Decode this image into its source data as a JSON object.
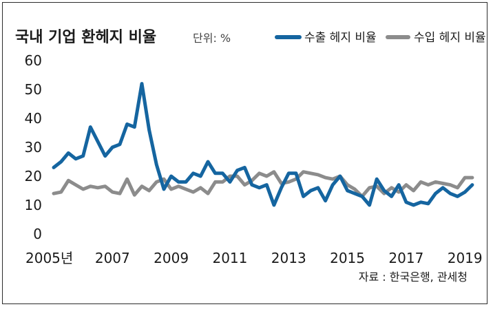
{
  "chart_data": {
    "type": "line",
    "title": "국내 기업 환헤지 비율",
    "unit_label": "단위: %",
    "source": "자료 : 한국은행, 관세청",
    "ylim": [
      0,
      60
    ],
    "yticks": [
      0,
      10,
      20,
      30,
      40,
      50,
      60
    ],
    "xlim": [
      2005,
      2019.3
    ],
    "xticks": [
      {
        "x": 2005,
        "label": "2005년"
      },
      {
        "x": 2007,
        "label": "2007"
      },
      {
        "x": 2009,
        "label": "2009"
      },
      {
        "x": 2011,
        "label": "2011"
      },
      {
        "x": 2013,
        "label": "2013"
      },
      {
        "x": 2015,
        "label": "2015"
      },
      {
        "x": 2017,
        "label": "2017"
      },
      {
        "x": 2019,
        "label": "2019"
      }
    ],
    "grid": false,
    "legend_position": "top-right",
    "series": [
      {
        "name": "수출 헤지 비율",
        "color": "#1565a0",
        "x": [
          2005.0,
          2005.25,
          2005.5,
          2005.75,
          2006.0,
          2006.25,
          2006.5,
          2006.75,
          2007.0,
          2007.25,
          2007.5,
          2007.75,
          2008.0,
          2008.25,
          2008.5,
          2008.75,
          2009.0,
          2009.25,
          2009.5,
          2009.75,
          2010.0,
          2010.25,
          2010.5,
          2010.75,
          2011.0,
          2011.25,
          2011.5,
          2011.75,
          2012.0,
          2012.25,
          2012.5,
          2012.75,
          2013.0,
          2013.25,
          2013.5,
          2013.75,
          2014.0,
          2014.25,
          2014.5,
          2014.75,
          2015.0,
          2015.25,
          2015.5,
          2015.75,
          2016.0,
          2016.25,
          2016.5,
          2016.75,
          2017.0,
          2017.25,
          2017.5,
          2017.75,
          2018.0,
          2018.25,
          2018.5,
          2018.75,
          2019.0,
          2019.25
        ],
        "values": [
          23,
          25,
          28,
          26,
          27,
          37,
          32,
          27,
          30,
          31,
          38,
          37,
          52,
          36,
          24,
          15.5,
          20,
          18,
          18,
          21,
          20,
          25,
          21,
          21,
          18,
          22,
          23,
          17,
          16,
          17,
          10,
          16,
          21,
          21,
          13,
          15,
          16,
          11.5,
          17,
          20,
          15,
          14,
          13,
          10,
          19,
          15,
          13,
          17,
          11,
          10,
          11,
          10.5,
          14,
          16,
          14,
          13,
          14.5,
          17
        ]
      },
      {
        "name": "수입 헤지 비율",
        "color": "#8c8c8c",
        "x": [
          2005.0,
          2005.25,
          2005.5,
          2005.75,
          2006.0,
          2006.25,
          2006.5,
          2006.75,
          2007.0,
          2007.25,
          2007.5,
          2007.75,
          2008.0,
          2008.25,
          2008.5,
          2008.75,
          2009.0,
          2009.25,
          2009.5,
          2009.75,
          2010.0,
          2010.25,
          2010.5,
          2010.75,
          2011.0,
          2011.25,
          2011.5,
          2011.75,
          2012.0,
          2012.25,
          2012.5,
          2012.75,
          2013.0,
          2013.25,
          2013.5,
          2013.75,
          2014.0,
          2014.25,
          2014.5,
          2014.75,
          2015.0,
          2015.25,
          2015.5,
          2015.75,
          2016.0,
          2016.25,
          2016.5,
          2016.75,
          2017.0,
          2017.25,
          2017.5,
          2017.75,
          2018.0,
          2018.25,
          2018.5,
          2018.75,
          2019.0,
          2019.25
        ],
        "values": [
          14,
          14.5,
          18.5,
          17,
          15.5,
          16.5,
          16,
          16.5,
          14.5,
          14,
          19,
          13.5,
          16.5,
          15,
          18,
          19,
          15.5,
          16.5,
          15.5,
          14.5,
          16,
          14,
          18,
          18,
          20,
          20,
          17,
          18.5,
          21,
          20,
          21.5,
          17.5,
          18,
          19,
          21.5,
          21,
          20.5,
          19.5,
          19,
          20,
          17,
          15.5,
          13,
          16,
          16.5,
          14,
          16,
          14.5,
          17,
          15,
          18,
          17,
          18,
          17.5,
          17,
          16,
          19.5,
          19.5
        ]
      }
    ]
  }
}
